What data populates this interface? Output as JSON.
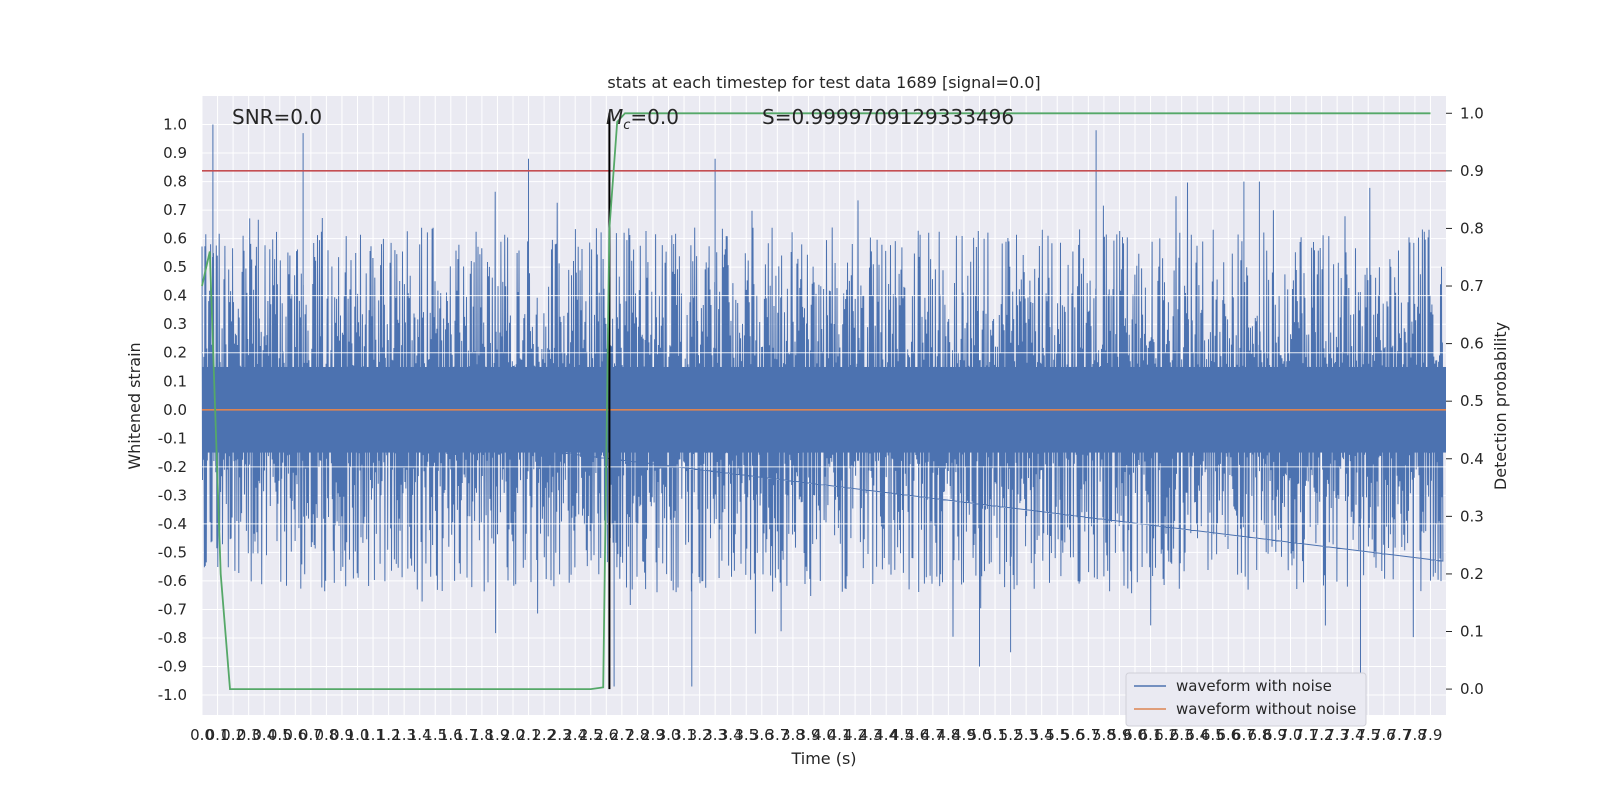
{
  "chart_data": {
    "type": "line",
    "title": "stats at each timestep for test data 1689 [signal=0.0]",
    "xlabel": "Time (s)",
    "ylabel": "Whitened strain",
    "ylabel_right": "Detection probability",
    "xlim": [
      0,
      8
    ],
    "ylim": [
      -1.07,
      1.1
    ],
    "ylim_right": [
      -0.045,
      1.03
    ],
    "x_ticks": [
      "0.0",
      "0.1",
      "0.2",
      "0.3",
      "0.4",
      "0.5",
      "0.6",
      "0.7",
      "0.8",
      "0.9",
      "1.0",
      "1.1",
      "1.2",
      "1.3",
      "1.4",
      "1.5",
      "1.6",
      "1.7",
      "1.8",
      "1.9",
      "2.0",
      "2.1",
      "2.2",
      "2.3",
      "2.4",
      "2.5",
      "2.6",
      "2.7",
      "2.8",
      "2.9",
      "3.0",
      "3.1",
      "3.2",
      "3.3",
      "3.4",
      "3.5",
      "3.6",
      "3.7",
      "3.8",
      "3.9",
      "4.0",
      "4.1",
      "4.2",
      "4.3",
      "4.4",
      "4.5",
      "4.6",
      "4.7",
      "4.8",
      "4.9",
      "5.0",
      "5.1",
      "5.2",
      "5.3",
      "5.4",
      "5.5",
      "5.6",
      "5.7",
      "5.8",
      "5.9",
      "6.0",
      "6.1",
      "6.2",
      "6.3",
      "6.4",
      "6.5",
      "6.6",
      "6.7",
      "6.8",
      "6.9",
      "7.0",
      "7.1",
      "7.2",
      "7.3",
      "7.4",
      "7.5",
      "7.6",
      "7.7",
      "7.8",
      "7.9"
    ],
    "y_ticks": [
      "1.0",
      "0.9",
      "0.8",
      "0.7",
      "0.6",
      "0.5",
      "0.4",
      "0.3",
      "0.2",
      "0.1",
      "0.0",
      "-0.1",
      "-0.2",
      "-0.3",
      "-0.4",
      "-0.5",
      "-0.6",
      "-0.7",
      "-0.8",
      "-0.9",
      "-1.0"
    ],
    "y_ticks_right": [
      "1.0",
      "0.9",
      "0.8",
      "0.7",
      "0.6",
      "0.5",
      "0.4",
      "0.3",
      "0.2",
      "0.1",
      "0.0"
    ],
    "annotations": {
      "snr": "SNR=0.0",
      "mc": "=0.0",
      "mc_symbol": "M",
      "mc_subscript": "c",
      "s": "S=0.9999709129333496"
    },
    "threshold": 0.9,
    "marker_time": 2.62,
    "grid": true,
    "legend_position": "lower-right",
    "series": [
      {
        "name": "waveform with noise",
        "color": "#4c72b0",
        "envelope_typical": 0.4,
        "envelope_peak": 1.0
      },
      {
        "name": "waveform without noise",
        "color": "#dd8452",
        "values_constant": 0.0
      },
      {
        "color": "#55a868",
        "x": [
          0.0,
          0.05,
          0.12,
          0.18,
          0.25,
          1.0,
          2.0,
          2.5,
          2.58,
          2.62,
          2.67,
          2.72,
          3.0,
          5.0,
          7.9
        ],
        "y": [
          0.7,
          0.76,
          0.2,
          0.0,
          0.0,
          0.0,
          0.0,
          0.0,
          0.003,
          0.8,
          0.985,
          1.0,
          1.0,
          1.0,
          1.0
        ]
      }
    ],
    "threshold_color": "#c44e52",
    "marker_color": "#000000"
  }
}
